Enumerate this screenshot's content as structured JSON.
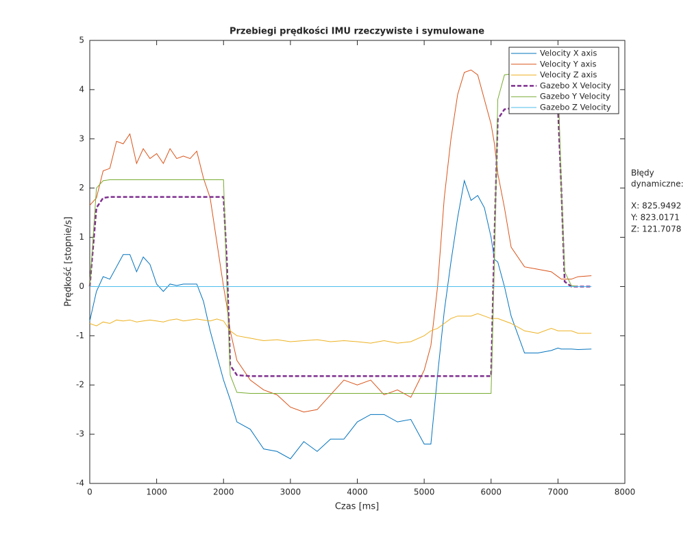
{
  "chart_data": {
    "type": "line",
    "title": "Przebiegi prędkości IMU rzeczywiste i symulowane",
    "xlabel": "Czas [ms]",
    "ylabel": "Prędkość [stopnie/s]",
    "xlim": [
      0,
      8000
    ],
    "xticks": [
      0,
      1000,
      2000,
      3000,
      4000,
      5000,
      6000,
      7000,
      8000
    ],
    "ylim": [
      -4,
      5
    ],
    "yticks": [
      -4,
      -3,
      -2,
      -1,
      0,
      1,
      2,
      3,
      4,
      5
    ],
    "legend": "upper right",
    "annotation": [
      "Błędy",
      "dynamiczne:",
      "X: 825.9492",
      "Y: 823.0171",
      "Z: 121.7078"
    ],
    "x": [
      0,
      100,
      200,
      300,
      400,
      500,
      600,
      700,
      800,
      900,
      1000,
      1100,
      1200,
      1300,
      1400,
      1500,
      1600,
      1700,
      1800,
      1900,
      2000,
      2050,
      2100,
      2200,
      2400,
      2600,
      2800,
      3000,
      3200,
      3400,
      3600,
      3800,
      4000,
      4200,
      4400,
      4600,
      4800,
      5000,
      5100,
      5200,
      5300,
      5400,
      5500,
      5600,
      5700,
      5800,
      5900,
      6000,
      6050,
      6100,
      6200,
      6300,
      6500,
      6700,
      6900,
      7000,
      7050,
      7100,
      7200,
      7300,
      7500
    ],
    "series": [
      {
        "name": "Velocity X axis",
        "color": "#0072BD",
        "dashed": false,
        "values": [
          -0.7,
          -0.1,
          0.2,
          0.15,
          0.4,
          0.65,
          0.65,
          0.3,
          0.6,
          0.45,
          0.05,
          -0.1,
          0.05,
          0.02,
          0.05,
          0.05,
          0.05,
          -0.3,
          -0.9,
          -1.4,
          -1.9,
          -2.1,
          -2.3,
          -2.75,
          -2.9,
          -3.3,
          -3.35,
          -3.5,
          -3.15,
          -3.35,
          -3.1,
          -3.1,
          -2.75,
          -2.6,
          -2.6,
          -2.75,
          -2.7,
          -3.2,
          -3.2,
          -1.8,
          -0.5,
          0.5,
          1.4,
          2.15,
          1.75,
          1.85,
          1.6,
          1.0,
          0.55,
          0.5,
          0.0,
          -0.6,
          -1.35,
          -1.35,
          -1.3,
          -1.25,
          -1.27,
          -1.27,
          -1.27,
          -1.28,
          -1.27
        ]
      },
      {
        "name": "Velocity Y axis",
        "color": "#D95319",
        "dashed": false,
        "values": [
          1.65,
          1.8,
          2.35,
          2.4,
          2.95,
          2.9,
          3.1,
          2.5,
          2.8,
          2.6,
          2.7,
          2.5,
          2.8,
          2.6,
          2.65,
          2.6,
          2.75,
          2.2,
          1.8,
          0.9,
          0.0,
          -0.4,
          -0.9,
          -1.5,
          -1.9,
          -2.1,
          -2.2,
          -2.45,
          -2.55,
          -2.5,
          -2.2,
          -1.9,
          -2.0,
          -1.9,
          -2.2,
          -2.1,
          -2.25,
          -1.7,
          -1.2,
          0.0,
          1.8,
          3.0,
          3.9,
          4.35,
          4.4,
          4.3,
          3.8,
          3.3,
          2.9,
          2.3,
          1.6,
          0.8,
          0.4,
          0.35,
          0.3,
          0.2,
          0.15,
          0.15,
          0.15,
          0.2,
          0.22
        ]
      },
      {
        "name": "Velocity Z axis",
        "color": "#EDB120",
        "dashed": false,
        "values": [
          -0.75,
          -0.8,
          -0.72,
          -0.75,
          -0.68,
          -0.7,
          -0.68,
          -0.72,
          -0.7,
          -0.68,
          -0.7,
          -0.72,
          -0.68,
          -0.66,
          -0.7,
          -0.68,
          -0.66,
          -0.68,
          -0.7,
          -0.66,
          -0.7,
          -0.8,
          -0.9,
          -1.0,
          -1.05,
          -1.1,
          -1.08,
          -1.12,
          -1.1,
          -1.08,
          -1.12,
          -1.1,
          -1.12,
          -1.15,
          -1.1,
          -1.15,
          -1.12,
          -1.0,
          -0.9,
          -0.85,
          -0.75,
          -0.65,
          -0.6,
          -0.6,
          -0.6,
          -0.55,
          -0.6,
          -0.65,
          -0.65,
          -0.65,
          -0.7,
          -0.75,
          -0.9,
          -0.95,
          -0.85,
          -0.9,
          -0.9,
          -0.9,
          -0.9,
          -0.95,
          -0.95
        ]
      },
      {
        "name": "Gazebo X Velocity",
        "color": "#7E2F8E",
        "dashed": true,
        "values": [
          0,
          1.6,
          1.8,
          1.82,
          1.82,
          1.82,
          1.82,
          1.82,
          1.82,
          1.82,
          1.82,
          1.82,
          1.82,
          1.82,
          1.82,
          1.82,
          1.82,
          1.82,
          1.82,
          1.82,
          1.82,
          0.5,
          -1.6,
          -1.8,
          -1.82,
          -1.82,
          -1.82,
          -1.82,
          -1.82,
          -1.82,
          -1.82,
          -1.82,
          -1.82,
          -1.82,
          -1.82,
          -1.82,
          -1.82,
          -1.82,
          -1.82,
          -1.82,
          -1.82,
          -1.82,
          -1.82,
          -1.82,
          -1.82,
          -1.82,
          -1.82,
          -1.82,
          1.0,
          3.4,
          3.6,
          3.62,
          3.62,
          3.62,
          3.62,
          3.62,
          2.0,
          0.1,
          0,
          0,
          0
        ]
      },
      {
        "name": "Gazebo Y Velocity",
        "color": "#77AC30",
        "dashed": false,
        "values": [
          0,
          2.0,
          2.15,
          2.17,
          2.17,
          2.17,
          2.17,
          2.17,
          2.17,
          2.17,
          2.17,
          2.17,
          2.17,
          2.17,
          2.17,
          2.17,
          2.17,
          2.17,
          2.17,
          2.17,
          2.17,
          0.0,
          -1.8,
          -2.15,
          -2.17,
          -2.17,
          -2.17,
          -2.17,
          -2.17,
          -2.17,
          -2.17,
          -2.17,
          -2.17,
          -2.17,
          -2.17,
          -2.17,
          -2.17,
          -2.17,
          -2.17,
          -2.17,
          -2.17,
          -2.17,
          -2.17,
          -2.17,
          -2.17,
          -2.17,
          -2.17,
          -2.17,
          0.5,
          3.8,
          4.3,
          4.32,
          4.32,
          4.32,
          4.32,
          4.32,
          2.0,
          0.3,
          0.02,
          0,
          0
        ]
      },
      {
        "name": "Gazebo Z Velocity",
        "color": "#4DBEEE",
        "dashed": false,
        "values": [
          0,
          0,
          0,
          0,
          0,
          0,
          0,
          0,
          0,
          0,
          0,
          0,
          0,
          0,
          0,
          0,
          0,
          0,
          0,
          0,
          0,
          0,
          0,
          0,
          0,
          0,
          0,
          0,
          0,
          0,
          0,
          0,
          0,
          0,
          0,
          0,
          0,
          0,
          0,
          0,
          0,
          0,
          0,
          0,
          0,
          0,
          0,
          0,
          0,
          0,
          0,
          0,
          0,
          0,
          0,
          0,
          0,
          0,
          0,
          0,
          0
        ]
      }
    ]
  }
}
